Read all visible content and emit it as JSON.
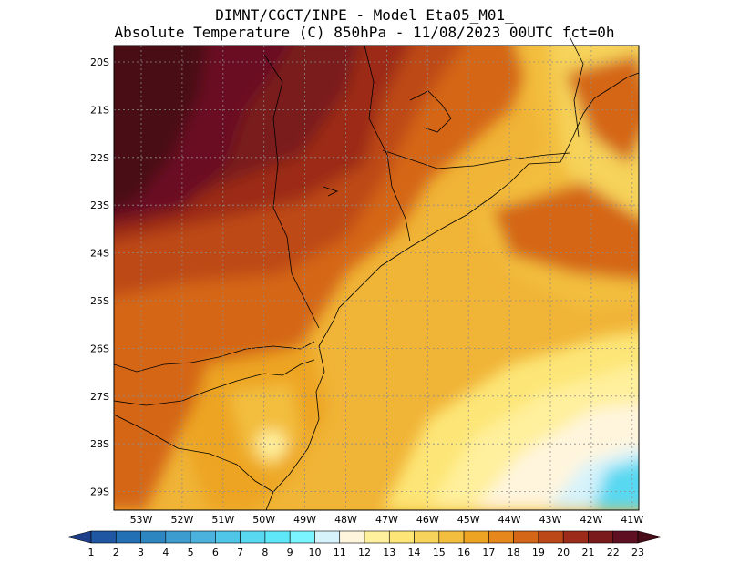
{
  "header": {
    "line1": "DIMNT/CGCT/INPE -  Model Eta05_M01_",
    "line2": "Absolute Temperature (C) 850hPa -  11/08/2023 00UTC fct=0h"
  },
  "map": {
    "lat_labels": [
      "20S",
      "21S",
      "22S",
      "23S",
      "24S",
      "25S",
      "26S",
      "27S",
      "28S",
      "29S"
    ],
    "lon_labels": [
      "53W",
      "52W",
      "51W",
      "50W",
      "49W",
      "48W",
      "47W",
      "46W",
      "45W",
      "44W",
      "43W",
      "42W",
      "41W"
    ],
    "grid": true,
    "variable": "Absolute Temperature",
    "units": "C",
    "level": "850hPa"
  },
  "legend": {
    "values": [
      "1",
      "2",
      "3",
      "4",
      "5",
      "6",
      "7",
      "8",
      "9",
      "10",
      "11",
      "12",
      "13",
      "14",
      "15",
      "16",
      "17",
      "18",
      "19",
      "20",
      "21",
      "22",
      "23"
    ],
    "colors": [
      "#1d3f8c",
      "#1f57a3",
      "#2470b4",
      "#2e86c1",
      "#3d9ccf",
      "#4bb2dd",
      "#4fc6e8",
      "#58d8f1",
      "#5ee7f8",
      "#7af4ff",
      "#d6f3fb",
      "#fff5dd",
      "#fff09d",
      "#fde677",
      "#f6d35a",
      "#f3be3e",
      "#eda423",
      "#e5871a",
      "#d46617",
      "#bd4817",
      "#9c2c19",
      "#7a1a1a",
      "#5e0f22",
      "#4a0b18"
    ]
  }
}
